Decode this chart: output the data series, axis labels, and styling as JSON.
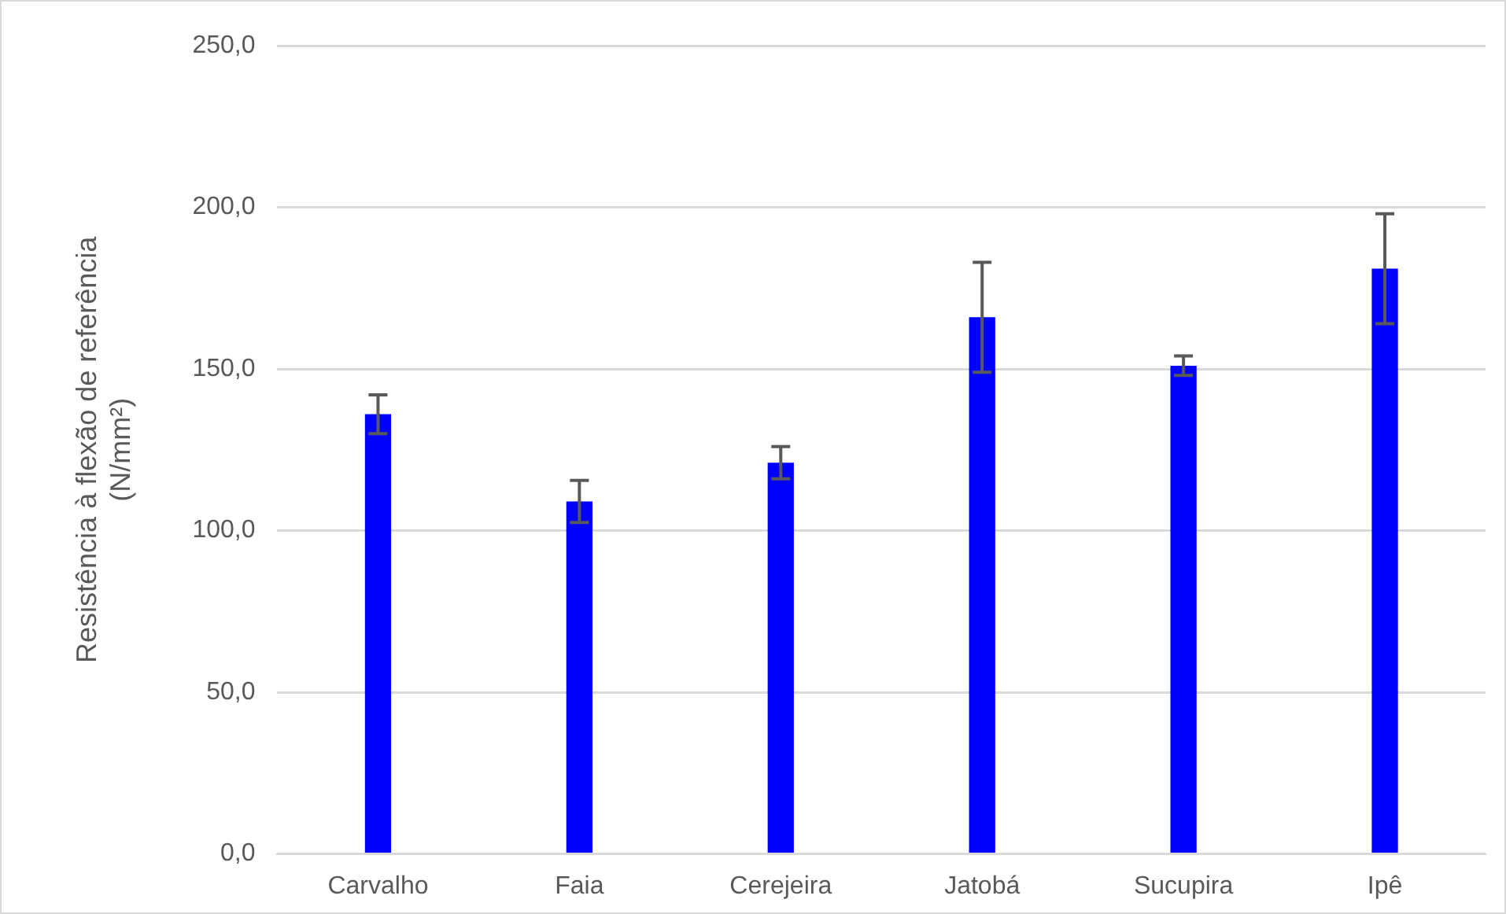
{
  "chart_data": {
    "type": "bar",
    "ylabel": "Resistência à flexão de referência\n(N/mm²)",
    "categories": [
      "Carvalho",
      "Faia",
      "Cerejeira",
      "Jatobá",
      "Sucupira",
      "Ipê"
    ],
    "values": [
      136,
      109,
      121,
      166,
      151,
      181
    ],
    "errors": [
      6,
      6.5,
      5,
      17,
      3,
      17
    ],
    "color": "#0000ff",
    "ylim": [
      0,
      250
    ],
    "yticks": [
      {
        "value": 0,
        "label": "0,0"
      },
      {
        "value": 50,
        "label": "50,0"
      },
      {
        "value": 100,
        "label": "100,0"
      },
      {
        "value": 150,
        "label": "150,0"
      },
      {
        "value": 200,
        "label": "200,0"
      },
      {
        "value": 250,
        "label": "250,0"
      }
    ],
    "grid": "y"
  }
}
